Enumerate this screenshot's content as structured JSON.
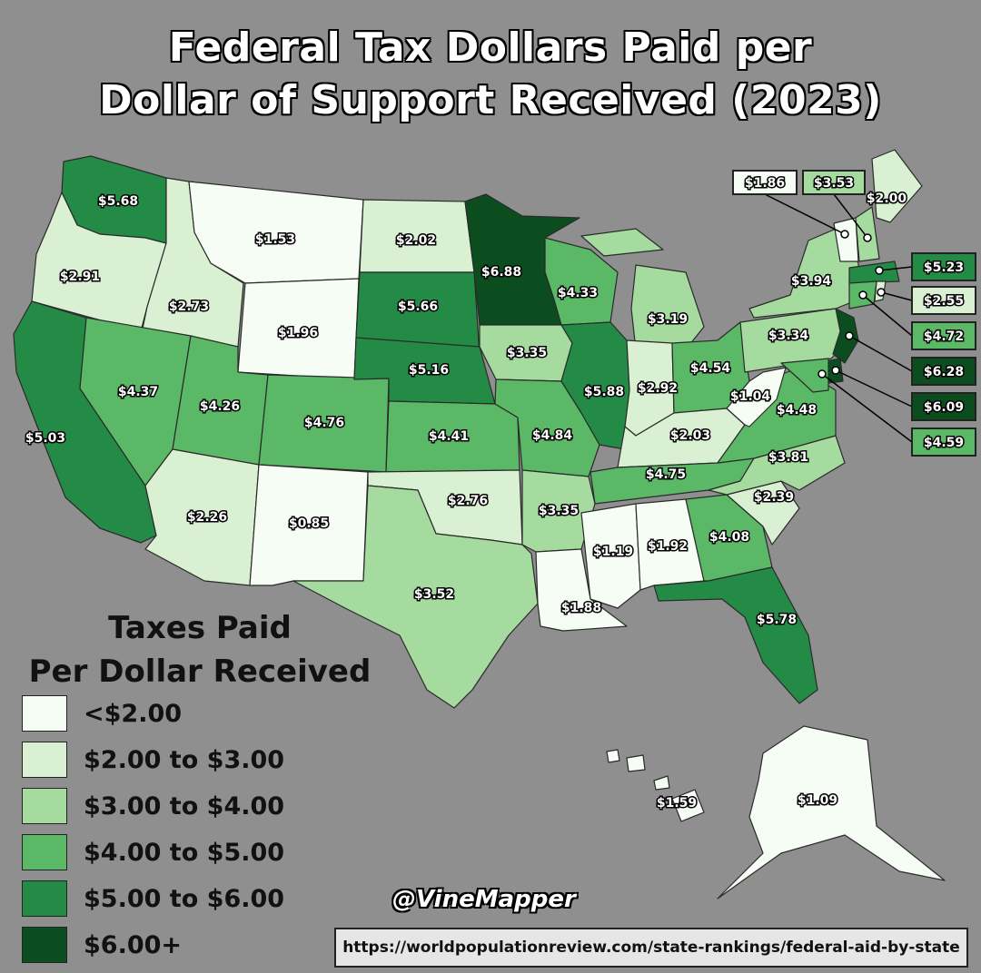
{
  "title": {
    "line1": "Federal Tax Dollars Paid per",
    "line2": "Dollar of Support Received (2023)"
  },
  "legend": {
    "title_line1": "Taxes Paid",
    "title_line2": "Per Dollar Received",
    "items": [
      {
        "label": "<$2.00",
        "color": "#f6fdf4"
      },
      {
        "label": "$2.00 to $3.00",
        "color": "#d9f0d3"
      },
      {
        "label": "$3.00 to $4.00",
        "color": "#a6dba0"
      },
      {
        "label": "$4.00 to $5.00",
        "color": "#5ab866"
      },
      {
        "label": "$5.00 to $6.00",
        "color": "#238b45"
      },
      {
        "label": "$6.00+",
        "color": "#0b4d1f"
      }
    ]
  },
  "states": [
    {
      "id": "WA",
      "value": "$5.68",
      "color": "#238b45"
    },
    {
      "id": "OR",
      "value": "$2.91",
      "color": "#d9f0d3"
    },
    {
      "id": "CA",
      "value": "$5.03",
      "color": "#238b45"
    },
    {
      "id": "ID",
      "value": "$2.73",
      "color": "#d9f0d3"
    },
    {
      "id": "NV",
      "value": "$4.37",
      "color": "#5ab866"
    },
    {
      "id": "MT",
      "value": "$1.53",
      "color": "#f6fdf4"
    },
    {
      "id": "WY",
      "value": "$1.96",
      "color": "#f6fdf4"
    },
    {
      "id": "UT",
      "value": "$4.26",
      "color": "#5ab866"
    },
    {
      "id": "AZ",
      "value": "$2.26",
      "color": "#d9f0d3"
    },
    {
      "id": "CO",
      "value": "$4.76",
      "color": "#5ab866"
    },
    {
      "id": "NM",
      "value": "$0.85",
      "color": "#f6fdf4"
    },
    {
      "id": "ND",
      "value": "$2.02",
      "color": "#d9f0d3"
    },
    {
      "id": "SD",
      "value": "$5.66",
      "color": "#238b45"
    },
    {
      "id": "NE",
      "value": "$5.16",
      "color": "#238b45"
    },
    {
      "id": "KS",
      "value": "$4.41",
      "color": "#5ab866"
    },
    {
      "id": "OK",
      "value": "$2.76",
      "color": "#d9f0d3"
    },
    {
      "id": "TX",
      "value": "$3.52",
      "color": "#a6dba0"
    },
    {
      "id": "MN",
      "value": "$6.88",
      "color": "#0b4d1f"
    },
    {
      "id": "IA",
      "value": "$3.35",
      "color": "#a6dba0"
    },
    {
      "id": "MO",
      "value": "$4.84",
      "color": "#5ab866"
    },
    {
      "id": "AR",
      "value": "$3.35",
      "color": "#a6dba0"
    },
    {
      "id": "LA",
      "value": "$1.88",
      "color": "#f6fdf4"
    },
    {
      "id": "WI",
      "value": "$4.33",
      "color": "#5ab866"
    },
    {
      "id": "IL",
      "value": "$5.88",
      "color": "#238b45"
    },
    {
      "id": "MI",
      "value": "$3.19",
      "color": "#a6dba0"
    },
    {
      "id": "IN",
      "value": "$2.92",
      "color": "#d9f0d3"
    },
    {
      "id": "OH",
      "value": "$4.54",
      "color": "#5ab866"
    },
    {
      "id": "KY",
      "value": "$2.03",
      "color": "#d9f0d3"
    },
    {
      "id": "TN",
      "value": "$4.75",
      "color": "#5ab866"
    },
    {
      "id": "MS",
      "value": "$1.19",
      "color": "#f6fdf4"
    },
    {
      "id": "AL",
      "value": "$1.92",
      "color": "#f6fdf4"
    },
    {
      "id": "GA",
      "value": "$4.08",
      "color": "#5ab866"
    },
    {
      "id": "FL",
      "value": "$5.78",
      "color": "#238b45"
    },
    {
      "id": "SC",
      "value": "$2.39",
      "color": "#d9f0d3"
    },
    {
      "id": "NC",
      "value": "$3.81",
      "color": "#a6dba0"
    },
    {
      "id": "VA",
      "value": "$4.48",
      "color": "#5ab866"
    },
    {
      "id": "WV",
      "value": "$1.04",
      "color": "#f6fdf4"
    },
    {
      "id": "PA",
      "value": "$3.34",
      "color": "#a6dba0"
    },
    {
      "id": "NY",
      "value": "$3.94",
      "color": "#a6dba0"
    },
    {
      "id": "ME",
      "value": "$2.00",
      "color": "#d9f0d3"
    },
    {
      "id": "NJ",
      "value": "$6.28",
      "color": "#0b4d1f"
    },
    {
      "id": "DE",
      "value": "$6.09",
      "color": "#0b4d1f"
    },
    {
      "id": "MD",
      "value": "$4.59",
      "color": "#5ab866"
    },
    {
      "id": "MA",
      "value": "$5.23",
      "color": "#238b45"
    },
    {
      "id": "RI",
      "value": "$2.55",
      "color": "#d9f0d3"
    },
    {
      "id": "CT",
      "value": "$4.72",
      "color": "#5ab866"
    },
    {
      "id": "VT",
      "value": "$1.86",
      "color": "#f6fdf4"
    },
    {
      "id": "NH",
      "value": "$3.53",
      "color": "#a6dba0"
    },
    {
      "id": "AK",
      "value": "$1.09",
      "color": "#f6fdf4"
    },
    {
      "id": "HI",
      "value": "$1.59",
      "color": "#f6fdf4"
    }
  ],
  "credit": "@VineMapper",
  "source": "https://worldpopulationreview.com/state-rankings/federal-aid-by-state"
}
